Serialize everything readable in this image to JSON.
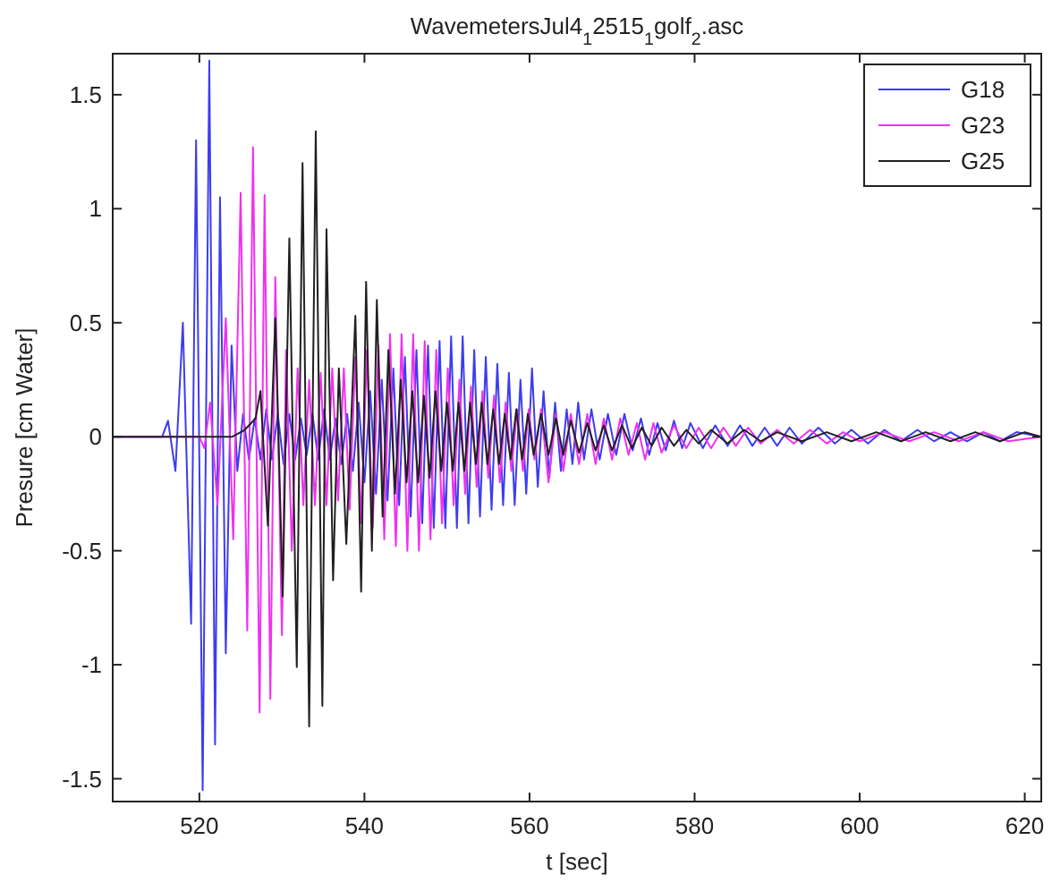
{
  "chart_data": {
    "type": "line",
    "title": "WavemetersJul4$_{1}$2515$_{1}$golf$_{2}$.asc",
    "xlabel": "t [sec]",
    "ylabel": "Presure [cm Water]",
    "xlim": [
      509.5,
      622
    ],
    "xticks": [
      520,
      540,
      560,
      580,
      600,
      620
    ],
    "ylim": [
      -1.6,
      1.68
    ],
    "yticks": [
      -1.5,
      -1,
      -0.5,
      0,
      0.5,
      1,
      1.5
    ],
    "grid": false,
    "legend": "top right",
    "marker": "none",
    "line_style": "solid",
    "series": [
      {
        "name": "G18",
        "color": "#3c3cf0",
        "x": [
          509.5,
          515.5,
          516.2,
          517.1,
          518.0,
          519.0,
          519.6,
          520.4,
          521.2,
          521.9,
          522.5,
          523.2,
          523.9,
          524.6,
          525.3,
          526.0,
          526.7,
          527.4,
          528.1,
          528.8,
          529.5,
          530.2,
          530.9,
          531.6,
          532.3,
          533.0,
          533.7,
          534.4,
          535.1,
          535.8,
          536.5,
          537.2,
          537.9,
          538.6,
          539.3,
          540.0,
          540.7,
          541.4,
          542.1,
          542.8,
          543.5,
          544.2,
          544.9,
          545.6,
          546.3,
          547.0,
          547.7,
          548.4,
          549.1,
          549.8,
          550.5,
          551.2,
          551.9,
          552.6,
          553.3,
          554.0,
          554.7,
          555.4,
          556.1,
          556.8,
          557.5,
          558.2,
          558.9,
          559.6,
          560.3,
          561.0,
          561.7,
          562.4,
          563.1,
          563.8,
          564.5,
          565.2,
          565.9,
          566.6,
          567.5,
          568.5,
          569.5,
          570.5,
          571.5,
          572.5,
          573.5,
          574.5,
          575.5,
          576.5,
          577.5,
          578.5,
          579.5,
          581,
          582.5,
          584,
          585.5,
          587,
          588.5,
          590,
          591.5,
          593,
          595,
          597,
          599,
          601,
          603,
          605,
          607,
          609,
          611,
          613,
          615,
          617,
          619,
          622
        ],
        "values": [
          0,
          0,
          0.07,
          -0.15,
          0.5,
          -0.82,
          1.3,
          -1.55,
          1.65,
          -1.35,
          1.05,
          -0.95,
          0.4,
          -0.15,
          0.1,
          -0.1,
          0.08,
          -0.1,
          0.12,
          -0.1,
          0.1,
          -0.12,
          0.1,
          -0.1,
          0.08,
          -0.08,
          0.1,
          -0.1,
          0.12,
          -0.1,
          0.08,
          -0.12,
          0.1,
          -0.15,
          0.15,
          -0.2,
          0.2,
          -0.25,
          0.25,
          -0.28,
          0.3,
          -0.3,
          0.35,
          -0.35,
          0.38,
          -0.38,
          0.4,
          -0.4,
          0.42,
          -0.4,
          0.44,
          -0.4,
          0.44,
          -0.38,
          0.38,
          -0.35,
          0.35,
          -0.32,
          0.32,
          -0.3,
          0.28,
          -0.3,
          0.25,
          -0.25,
          0.3,
          -0.22,
          0.2,
          -0.18,
          0.15,
          -0.15,
          0.12,
          -0.12,
          0.15,
          -0.1,
          0.12,
          -0.1,
          0.1,
          -0.08,
          0.1,
          -0.06,
          0.08,
          -0.08,
          0.06,
          -0.06,
          0.07,
          -0.05,
          0.06,
          -0.05,
          0.05,
          -0.04,
          0.05,
          -0.04,
          0.04,
          -0.04,
          0.04,
          -0.03,
          0.04,
          -0.03,
          0.03,
          -0.03,
          0.03,
          -0.02,
          0.03,
          -0.02,
          0.02,
          -0.02,
          0.02,
          -0.02,
          0.02,
          0
        ]
      },
      {
        "name": "G23",
        "color": "#f030f0",
        "x": [
          509.5,
          520,
          520.6,
          521.3,
          522.2,
          523.2,
          524.1,
          525.0,
          525.8,
          526.5,
          527.3,
          527.9,
          528.6,
          529.2,
          530.0,
          530.5,
          531.2,
          531.9,
          532.6,
          533.3,
          534.0,
          534.7,
          535.4,
          536.1,
          536.8,
          537.5,
          538.2,
          538.9,
          539.6,
          540.3,
          541.0,
          541.7,
          542.4,
          543.1,
          543.8,
          544.5,
          545.2,
          545.9,
          546.6,
          547.3,
          548.0,
          548.7,
          549.4,
          550.1,
          550.8,
          551.5,
          552.2,
          552.9,
          553.6,
          554.3,
          555,
          555.7,
          556.4,
          557.1,
          557.8,
          558.5,
          559.2,
          559.9,
          560.6,
          561.4,
          562.3,
          563.2,
          564.1,
          565,
          566,
          567,
          568,
          569,
          570,
          571,
          572,
          573,
          574,
          575,
          576,
          577.5,
          579,
          580.5,
          582,
          583.5,
          585,
          586.5,
          588,
          590,
          592,
          594,
          596,
          598,
          600,
          603,
          606,
          609,
          612,
          615,
          618,
          622
        ],
        "values": [
          0,
          0,
          -0.05,
          0.15,
          -0.3,
          0.52,
          -0.45,
          1.07,
          -0.85,
          1.27,
          -1.21,
          1.06,
          -1.15,
          0.7,
          -0.87,
          0.38,
          -0.5,
          0.3,
          -0.3,
          0.25,
          -0.3,
          0.28,
          -0.3,
          0.3,
          -0.28,
          0.3,
          -0.32,
          0.35,
          -0.38,
          0.38,
          -0.4,
          0.4,
          -0.45,
          0.45,
          -0.48,
          0.45,
          -0.5,
          0.45,
          -0.5,
          0.42,
          -0.45,
          0.38,
          -0.38,
          0.3,
          -0.3,
          0.25,
          -0.25,
          0.22,
          -0.22,
          0.2,
          -0.18,
          0.18,
          -0.2,
          0.15,
          -0.15,
          0.12,
          -0.15,
          0.12,
          -0.1,
          0.12,
          -0.2,
          0.1,
          -0.15,
          0.1,
          -0.12,
          0.1,
          -0.12,
          0.08,
          -0.1,
          0.08,
          -0.08,
          0.06,
          -0.1,
          0.06,
          -0.07,
          0.05,
          -0.05,
          0.04,
          -0.05,
          0.04,
          -0.04,
          0.04,
          -0.03,
          0.03,
          -0.03,
          0.03,
          -0.03,
          0.02,
          -0.02,
          0.02,
          -0.02,
          0.02,
          -0.02,
          0.02,
          -0.02,
          0
        ]
      },
      {
        "name": "G25",
        "color": "#202020",
        "x": [
          509.5,
          524,
          525.5,
          526.8,
          527.4,
          528.3,
          529.2,
          530.1,
          530.9,
          531.8,
          532.5,
          533.3,
          534.1,
          534.9,
          535.4,
          536.2,
          536.9,
          537.8,
          538.9,
          539.6,
          540.2,
          540.9,
          541.5,
          542.2,
          542.9,
          543.7,
          544.4,
          545.1,
          545.8,
          546.5,
          547.2,
          547.9,
          548.6,
          549.3,
          550,
          550.7,
          551.4,
          552.1,
          552.8,
          553.5,
          554.2,
          554.9,
          555.6,
          556.3,
          557,
          557.7,
          558.4,
          559.1,
          559.8,
          560.5,
          561.4,
          562.3,
          563.2,
          564.1,
          565,
          566,
          567,
          568,
          569,
          570,
          571.2,
          572.4,
          573.6,
          574.8,
          576,
          577.5,
          579,
          580.5,
          582,
          584,
          586,
          588,
          590,
          593,
          596,
          599,
          602,
          605,
          608,
          611,
          614,
          617,
          620,
          622
        ],
        "values": [
          0,
          0,
          0.03,
          0.08,
          0.2,
          -0.39,
          0.52,
          -0.7,
          0.87,
          -1.01,
          1.2,
          -1.27,
          1.34,
          -1.18,
          0.91,
          -0.63,
          0.3,
          -0.47,
          0.53,
          -0.68,
          0.68,
          -0.5,
          0.6,
          -0.35,
          0.38,
          -0.25,
          0.25,
          -0.2,
          0.2,
          -0.2,
          0.18,
          -0.18,
          0.2,
          -0.15,
          0.15,
          -0.15,
          0.15,
          -0.15,
          0.15,
          -0.12,
          0.15,
          -0.12,
          0.12,
          -0.12,
          0.1,
          -0.1,
          0.12,
          -0.1,
          0.1,
          -0.08,
          0.1,
          -0.08,
          0.08,
          -0.08,
          0.07,
          -0.07,
          0.06,
          -0.06,
          0.05,
          -0.06,
          0.05,
          -0.05,
          0.04,
          -0.04,
          0.04,
          -0.04,
          0.03,
          -0.03,
          0.03,
          -0.03,
          0.03,
          -0.02,
          0.02,
          -0.02,
          0.02,
          -0.02,
          0.02,
          -0.02,
          0.02,
          -0.02,
          0.02,
          -0.02,
          0.02,
          0
        ]
      }
    ]
  }
}
